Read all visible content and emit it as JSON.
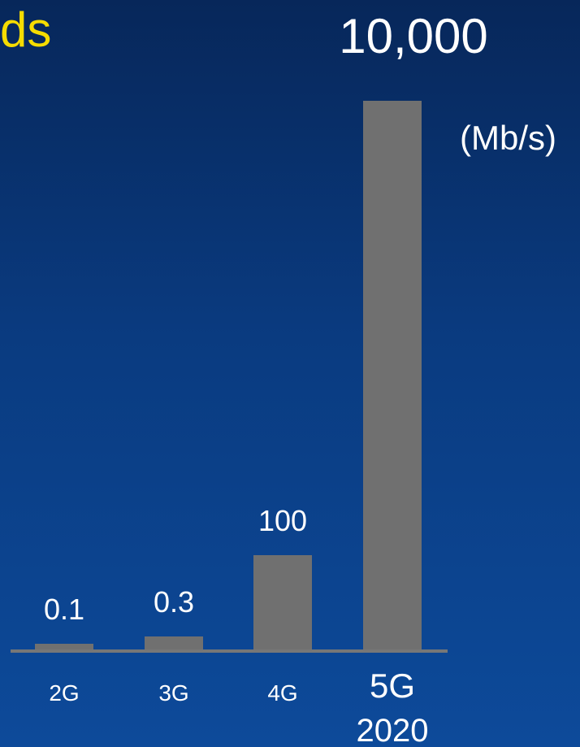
{
  "slide": {
    "title_fragment": "ds"
  },
  "chart_data": {
    "type": "bar",
    "categories": [
      "2G",
      "3G",
      "4G",
      "5G"
    ],
    "category_sublabels": [
      "",
      "",
      "",
      "2020"
    ],
    "values": [
      0.1,
      0.3,
      100,
      10000
    ],
    "data_labels": [
      "0.1",
      "0.3",
      "100",
      "10,000"
    ],
    "unit": "(Mb/s)",
    "bar_color": "#707070",
    "accent_title_color": "#f5dc00",
    "text_color": "#ffffff"
  }
}
